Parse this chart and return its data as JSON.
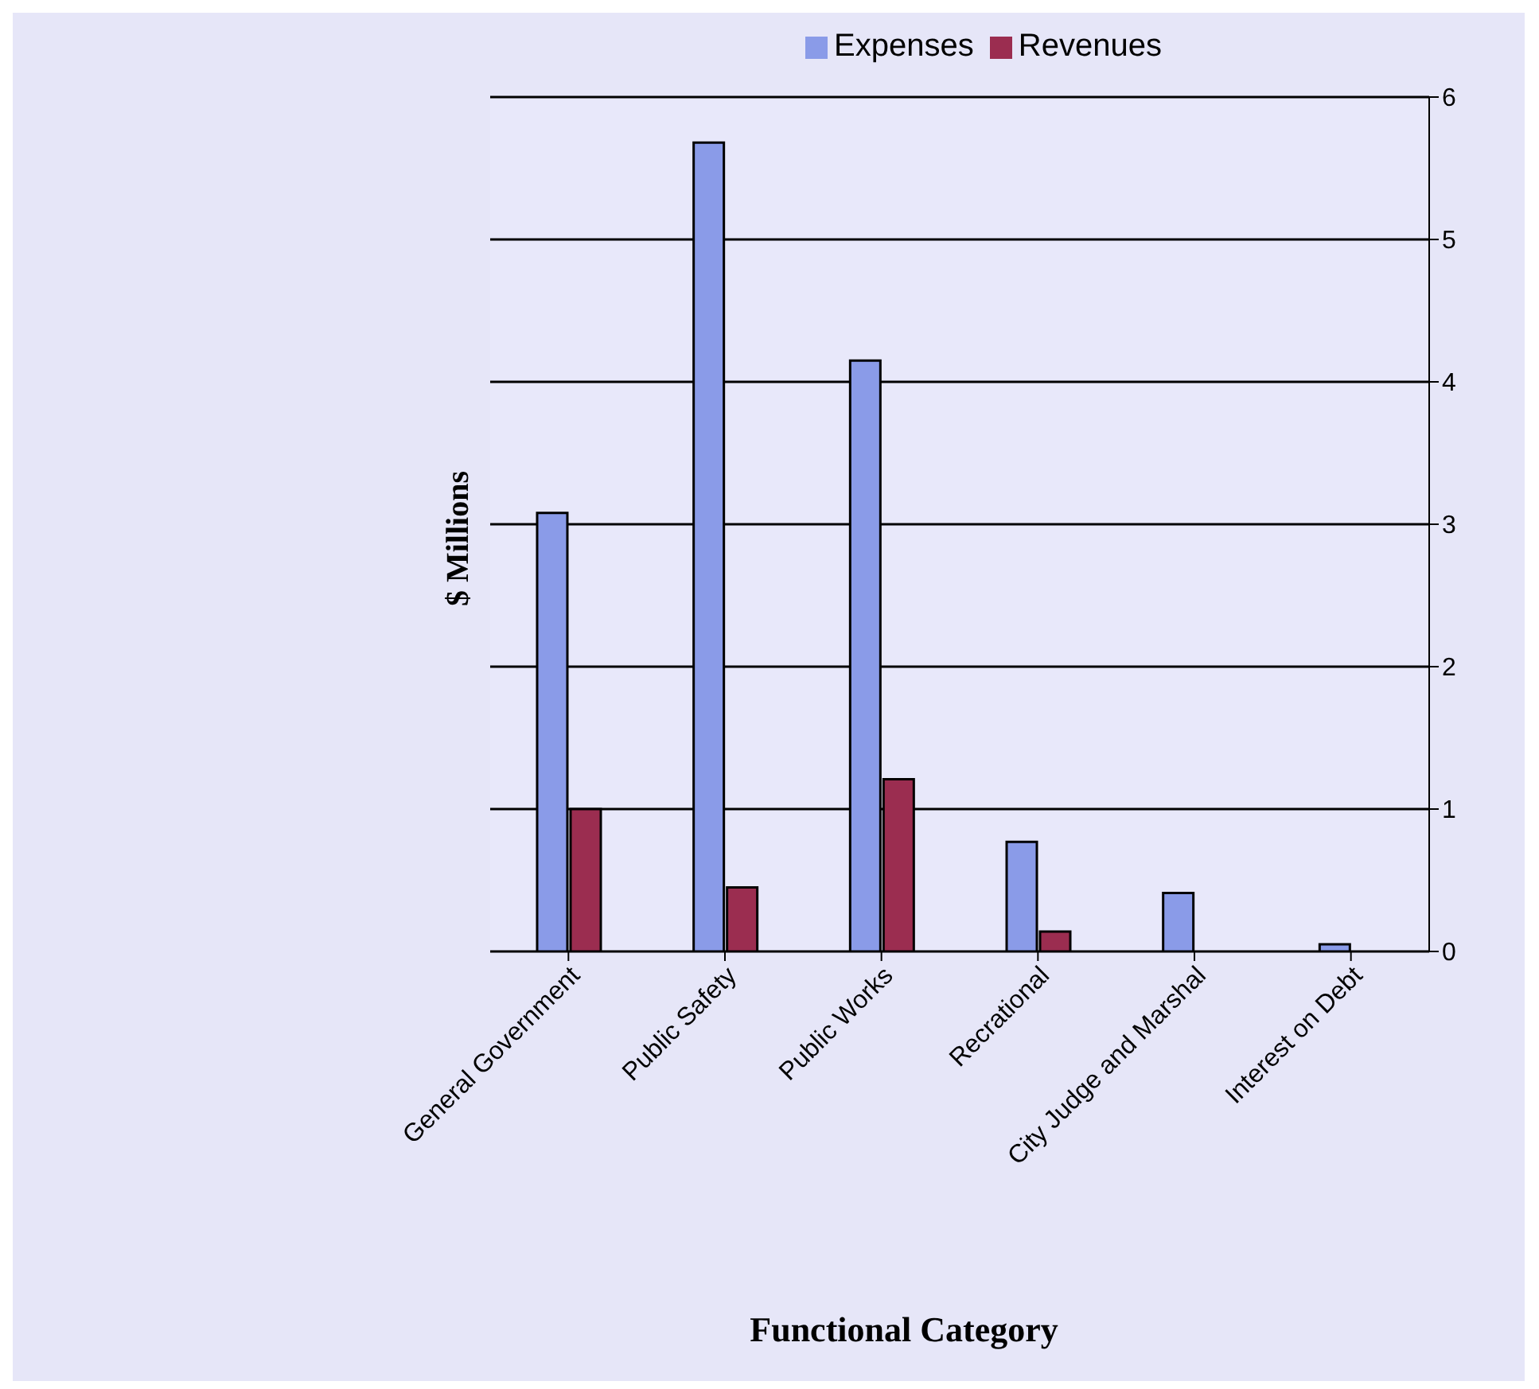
{
  "chart_data": {
    "type": "bar",
    "xlabel": "Functional Category",
    "ylabel": "$ Millions",
    "categories": [
      "General Government",
      "Public Safety",
      "Public Works",
      "Recrational",
      "City Judge and Marshal",
      "Interest on Debt"
    ],
    "series": [
      {
        "name": "Expenses",
        "color": "#8a9be8",
        "values": [
          3.08,
          5.68,
          4.15,
          0.77,
          0.41,
          0.05
        ]
      },
      {
        "name": "Revenues",
        "color": "#9b2d50",
        "values": [
          1.0,
          0.45,
          1.21,
          0.14,
          0,
          0
        ]
      }
    ],
    "ylim": [
      0,
      6
    ],
    "yticks": [
      0,
      1,
      2,
      3,
      4,
      5,
      6
    ],
    "grid": "y",
    "legend": "top"
  }
}
